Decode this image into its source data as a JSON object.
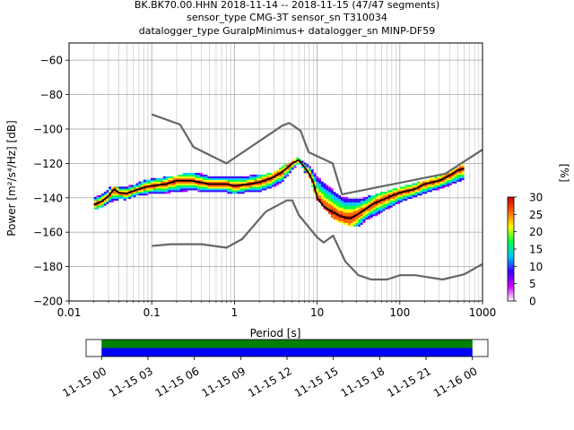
{
  "titles": {
    "line1": "BK.BK70.00.HHN   2018-11-14 -- 2018-11-15  (47/47 segments)",
    "line2": "sensor_type CMG-3T sensor_sn T310034",
    "line3": "datalogger_type GuralpMinimus+ datalogger_sn MINP-DF59"
  },
  "chart_data": [
    {
      "type": "heatmap",
      "xlabel": "Period [s]",
      "ylabel": "Power [m²/s⁴/Hz] [dB]",
      "xscale": "log",
      "xlim": [
        0.01,
        1000
      ],
      "ylim": [
        -200,
        -50
      ],
      "xticks": [
        0.01,
        0.1,
        1,
        10,
        100,
        1000
      ],
      "xtick_labels": [
        "0.01",
        "0.1",
        "1",
        "10",
        "100",
        "1000"
      ],
      "yticks": [
        -200,
        -180,
        -160,
        -140,
        -120,
        -100,
        -80,
        -60
      ],
      "ytick_labels": [
        "−200",
        "−180",
        "−160",
        "−140",
        "−120",
        "−100",
        "−80",
        "−60"
      ],
      "grid": true,
      "colorbar": {
        "label": "[%]",
        "range": [
          0,
          30
        ],
        "ticks": [
          0,
          5,
          10,
          15,
          20,
          25,
          30
        ],
        "tick_labels": [
          "0",
          "5",
          "10",
          "15",
          "20",
          "25",
          "30"
        ],
        "colors": [
          "#ffffff",
          "#cc00ff",
          "#3300ff",
          "#00c8ff",
          "#00ff44",
          "#ffff00",
          "#ff6600",
          "#cc0000"
        ]
      },
      "series": [
        {
          "name": "NHNM",
          "color": "#666666",
          "x": [
            0.1,
            0.22,
            0.32,
            0.8,
            3.8,
            4.6,
            6.3,
            7.9,
            15.4,
            20,
            354.8,
            1000
          ],
          "y": [
            -91.5,
            -97.4,
            -110.5,
            -120,
            -98,
            -96.5,
            -101,
            -113.5,
            -120,
            -138,
            -126,
            -112
          ]
        },
        {
          "name": "NLNM",
          "color": "#666666",
          "x": [
            0.1,
            0.17,
            0.4,
            0.8,
            1.24,
            2.4,
            4.3,
            5,
            6,
            10,
            12,
            15.6,
            21.9,
            31.6,
            45,
            70,
            101,
            154,
            328,
            600,
            1000
          ],
          "y": [
            -168,
            -167,
            -167,
            -169,
            -164,
            -148,
            -141.5,
            -141.5,
            -150,
            -163,
            -166,
            -162,
            -177,
            -185,
            -187.5,
            -187.5,
            -185,
            -185,
            -187.5,
            -184.5,
            -178.5
          ]
        },
        {
          "name": "mode",
          "color": "#000000",
          "x": [
            0.02,
            0.025,
            0.03,
            0.035,
            0.04,
            0.05,
            0.06,
            0.08,
            0.1,
            0.15,
            0.2,
            0.3,
            0.5,
            0.8,
            1,
            1.5,
            2,
            3,
            4,
            5,
            6,
            7,
            8,
            9,
            10,
            12,
            15,
            20,
            25,
            30,
            40,
            50,
            70,
            100,
            150,
            200,
            300,
            400,
            500,
            600
          ],
          "y": [
            -144,
            -142,
            -139,
            -135,
            -137,
            -137.5,
            -136,
            -134,
            -133,
            -132,
            -130,
            -130,
            -132,
            -132,
            -133,
            -132,
            -131,
            -128,
            -124,
            -120,
            -118,
            -122,
            -126,
            -131,
            -140,
            -145,
            -148,
            -151,
            -152,
            -150,
            -146,
            -143,
            -140,
            -137,
            -135,
            -132,
            -130,
            -127,
            -124,
            -123
          ]
        },
        {
          "name": "PPD spread upper",
          "color": "#cc00ff",
          "x": [
            0.02,
            0.03,
            0.05,
            0.1,
            0.2,
            0.3,
            0.5,
            1,
            2,
            3,
            4,
            5,
            6,
            8,
            10,
            15,
            20,
            30,
            50,
            100,
            200,
            400,
            600
          ],
          "y": [
            -140,
            -135,
            -133,
            -130,
            -128,
            -126,
            -127,
            -127,
            -128,
            -126,
            -122,
            -120,
            -117,
            -121,
            -127,
            -134,
            -139,
            -140,
            -139,
            -135,
            -131,
            -126,
            -121
          ]
        },
        {
          "name": "PPD spread lower",
          "color": "#cc00ff",
          "x": [
            0.02,
            0.03,
            0.05,
            0.1,
            0.2,
            0.3,
            0.5,
            1,
            2,
            3,
            4,
            5,
            6,
            8,
            10,
            15,
            20,
            30,
            50,
            100,
            200,
            400,
            600
          ],
          "y": [
            -146,
            -143,
            -140,
            -138,
            -137,
            -136,
            -137,
            -137,
            -137,
            -134,
            -130,
            -124,
            -120,
            -127,
            -140,
            -150,
            -154,
            -156,
            -151,
            -143,
            -138,
            -133,
            -130
          ]
        }
      ]
    },
    {
      "type": "bar",
      "xlabel": "",
      "ylabel": "",
      "xlim": [
        "11-14 23:00",
        "11-16 01:00"
      ],
      "xticks": [
        "11-15 00",
        "11-15 03",
        "11-15 06",
        "11-15 09",
        "11-15 12",
        "11-15 15",
        "11-15 18",
        "11-15 21",
        "11-16 00"
      ],
      "series": [
        {
          "name": "data coverage",
          "color": "#008000",
          "start": "11-15 00",
          "end": "11-16 00"
        },
        {
          "name": "psd coverage",
          "color": "#0000ff",
          "start": "11-15 00",
          "end": "11-16 00"
        }
      ]
    }
  ]
}
